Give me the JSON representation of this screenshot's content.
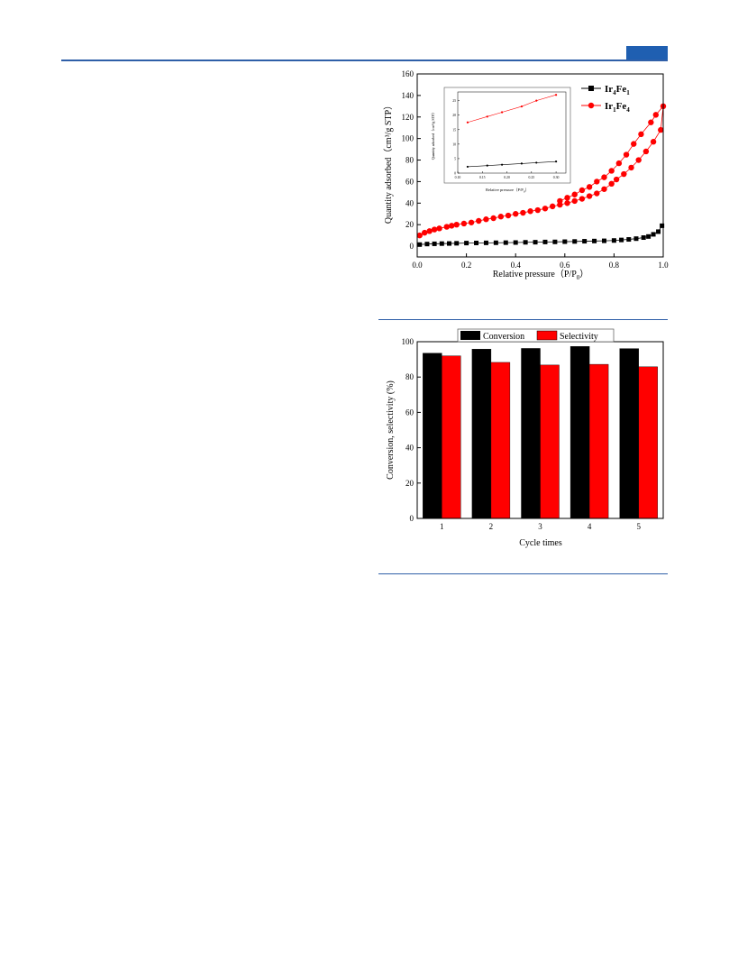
{
  "colors": {
    "header_blue": "#1f5fb1",
    "series_black": "#000000",
    "series_red": "#ff0000"
  },
  "chart_data": [
    {
      "type": "scatter",
      "title": "",
      "xlabel": "Relative pressure（P/P",
      "xlabel_sub": "0",
      "xlabel_end": "）",
      "ylabel": "Quantity adsorbed（cm³/g STP）",
      "xlim": [
        0,
        1.0
      ],
      "ylim": [
        -10,
        160
      ],
      "xticks": [
        "0.0",
        "0.2",
        "0.4",
        "0.6",
        "0.8",
        "1.0"
      ],
      "yticks": [
        "0",
        "20",
        "40",
        "60",
        "80",
        "100",
        "120",
        "140",
        "160"
      ],
      "legend_position": "top-right",
      "series": [
        {
          "name": "Ir4Fe1",
          "name_parts": [
            "Ir",
            "4",
            "Fe",
            "1"
          ],
          "marker": "square",
          "color": "#000000",
          "x": [
            0.01,
            0.04,
            0.07,
            0.1,
            0.13,
            0.16,
            0.2,
            0.24,
            0.28,
            0.32,
            0.36,
            0.4,
            0.44,
            0.48,
            0.52,
            0.56,
            0.6,
            0.64,
            0.68,
            0.72,
            0.76,
            0.8,
            0.83,
            0.86,
            0.89,
            0.92,
            0.94,
            0.96,
            0.98,
            0.995
          ],
          "y": [
            1.5,
            2,
            2.2,
            2.4,
            2.5,
            2.7,
            2.9,
            3,
            3.1,
            3.2,
            3.3,
            3.4,
            3.6,
            3.7,
            3.9,
            4,
            4.2,
            4.4,
            4.6,
            4.8,
            5,
            5.3,
            5.8,
            6.3,
            7,
            8,
            9,
            11,
            13.5,
            19
          ]
        },
        {
          "name": "Ir1Fe4",
          "name_parts": [
            "Ir",
            "1",
            "Fe",
            "4"
          ],
          "marker": "circle",
          "color": "#ff0000",
          "x": [
            0.01,
            0.03,
            0.05,
            0.07,
            0.09,
            0.12,
            0.14,
            0.16,
            0.19,
            0.22,
            0.25,
            0.28,
            0.31,
            0.34,
            0.37,
            0.4,
            0.43,
            0.46,
            0.49,
            0.52,
            0.55,
            0.58,
            0.61,
            0.64,
            0.67,
            0.7,
            0.73,
            0.76,
            0.79,
            0.81,
            0.84,
            0.87,
            0.9,
            0.93,
            0.96,
            0.99,
            1.0,
            0.97,
            0.95,
            0.91,
            0.88,
            0.85,
            0.82,
            0.79,
            0.76,
            0.73,
            0.7,
            0.67,
            0.64,
            0.61,
            0.58
          ],
          "y": [
            10,
            12.5,
            14,
            15.5,
            16.5,
            18,
            19,
            20,
            21,
            22,
            23.5,
            25,
            26,
            27.5,
            28.5,
            30,
            31,
            32.5,
            33.5,
            35,
            37,
            38.5,
            40,
            42,
            44,
            46.5,
            49,
            53,
            58,
            62,
            67,
            73,
            80,
            88,
            97,
            108,
            130,
            122,
            115,
            104,
            95,
            85,
            77,
            70,
            64,
            60,
            55,
            52,
            48,
            45,
            42
          ]
        }
      ],
      "inset": {
        "xlabel": "Relative pressure（P/P",
        "xlabel_sub": "0",
        "xlabel_end": "）",
        "ylabel": "Quantity adsorbed（cm³/g STP）",
        "xlim": [
          0.1,
          0.32
        ],
        "ylim": [
          0,
          28
        ],
        "xticks": [
          "0.10",
          "0.15",
          "0.20",
          "0.25",
          "0.30"
        ],
        "yticks": [
          "0",
          "5",
          "10",
          "15",
          "20",
          "25"
        ],
        "series": [
          {
            "name": "Ir4Fe1",
            "color": "#000000",
            "x": [
              0.12,
              0.16,
              0.19,
              0.23,
              0.26,
              0.3
            ],
            "y": [
              2.2,
              2.6,
              2.9,
              3.3,
              3.6,
              4.0
            ]
          },
          {
            "name": "Ir1Fe4",
            "color": "#ff0000",
            "x": [
              0.12,
              0.16,
              0.19,
              0.23,
              0.26,
              0.3
            ],
            "y": [
              17.5,
              19.5,
              21,
              23,
              25,
              27
            ]
          }
        ]
      }
    },
    {
      "type": "bar",
      "title": "",
      "xlabel": "Cycle times",
      "ylabel": "Conversion, selectivity (%)",
      "categories": [
        "1",
        "2",
        "3",
        "4",
        "5"
      ],
      "ylim": [
        0,
        100
      ],
      "yticks": [
        "0",
        "20",
        "40",
        "60",
        "80",
        "100"
      ],
      "legend_position": "top",
      "series": [
        {
          "name": "Conversion",
          "color": "#000000",
          "values": [
            93.5,
            95.8,
            96.2,
            97.3,
            96.1
          ]
        },
        {
          "name": "Selectivity",
          "color": "#ff0000",
          "values": [
            92.0,
            88.3,
            86.8,
            87.2,
            85.8
          ]
        }
      ]
    }
  ]
}
